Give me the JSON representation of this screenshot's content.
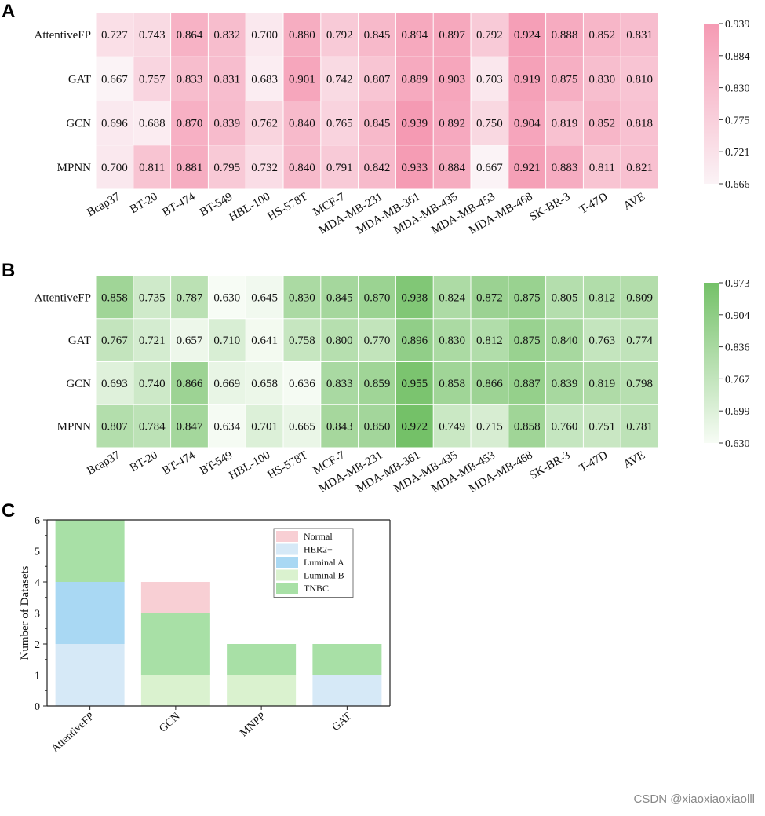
{
  "chart_data": [
    {
      "panel": "A",
      "type": "heatmap",
      "rows": [
        "AttentiveFP",
        "GAT",
        "GCN",
        "MPNN"
      ],
      "columns": [
        "Bcap37",
        "BT-20",
        "BT-474",
        "BT-549",
        "HBL-100",
        "HS-578T",
        "MCF-7",
        "MDA-MB-231",
        "MDA-MB-361",
        "MDA-MB-435",
        "MDA-MB-453",
        "MDA-MB-468",
        "SK-BR-3",
        "T-47D",
        "AVE"
      ],
      "values": [
        [
          "0.727",
          "0.743",
          "0.864",
          "0.832",
          "0.700",
          "0.880",
          "0.792",
          "0.845",
          "0.894",
          "0.897",
          "0.792",
          "0.924",
          "0.888",
          "0.852",
          "0.831"
        ],
        [
          "0.667",
          "0.757",
          "0.833",
          "0.831",
          "0.683",
          "0.901",
          "0.742",
          "0.807",
          "0.889",
          "0.903",
          "0.703",
          "0.919",
          "0.875",
          "0.830",
          "0.810"
        ],
        [
          "0.696",
          "0.688",
          "0.870",
          "0.839",
          "0.762",
          "0.840",
          "0.765",
          "0.845",
          "0.939",
          "0.892",
          "0.750",
          "0.904",
          "0.819",
          "0.852",
          "0.818"
        ],
        [
          "0.700",
          "0.811",
          "0.881",
          "0.795",
          "0.732",
          "0.840",
          "0.791",
          "0.842",
          "0.933",
          "0.884",
          "0.667",
          "0.921",
          "0.883",
          "0.811",
          "0.821"
        ]
      ],
      "colorbar_ticks": [
        "0.939",
        "0.884",
        "0.830",
        "0.775",
        "0.721",
        "0.666"
      ],
      "vmin": 0.666,
      "vmax": 0.939,
      "color_low": "#fbf3f6",
      "color_high": "#f59ab3"
    },
    {
      "panel": "B",
      "type": "heatmap",
      "rows": [
        "AttentiveFP",
        "GAT",
        "GCN",
        "MPNN"
      ],
      "columns": [
        "Bcap37",
        "BT-20",
        "BT-474",
        "BT-549",
        "HBL-100",
        "HS-578T",
        "MCF-7",
        "MDA-MB-231",
        "MDA-MB-361",
        "MDA-MB-435",
        "MDA-MB-453",
        "MDA-MB-468",
        "SK-BR-3",
        "T-47D",
        "AVE"
      ],
      "values": [
        [
          "0.858",
          "0.735",
          "0.787",
          "0.630",
          "0.645",
          "0.830",
          "0.845",
          "0.870",
          "0.938",
          "0.824",
          "0.872",
          "0.875",
          "0.805",
          "0.812",
          "0.809"
        ],
        [
          "0.767",
          "0.721",
          "0.657",
          "0.710",
          "0.641",
          "0.758",
          "0.800",
          "0.770",
          "0.896",
          "0.830",
          "0.812",
          "0.875",
          "0.840",
          "0.763",
          "0.774"
        ],
        [
          "0.693",
          "0.740",
          "0.866",
          "0.669",
          "0.658",
          "0.636",
          "0.833",
          "0.859",
          "0.955",
          "0.858",
          "0.866",
          "0.887",
          "0.839",
          "0.819",
          "0.798"
        ],
        [
          "0.807",
          "0.784",
          "0.847",
          "0.634",
          "0.701",
          "0.665",
          "0.843",
          "0.850",
          "0.972",
          "0.749",
          "0.715",
          "0.858",
          "0.760",
          "0.751",
          "0.781"
        ]
      ],
      "colorbar_ticks": [
        "0.973",
        "0.904",
        "0.836",
        "0.767",
        "0.699",
        "0.630"
      ],
      "vmin": 0.63,
      "vmax": 0.973,
      "color_low": "#f7fcf5",
      "color_high": "#74c168"
    },
    {
      "panel": "C",
      "type": "bar",
      "stacked": true,
      "categories": [
        "AttentiveFP",
        "GCN",
        "MNPP",
        "GAT"
      ],
      "series": [
        {
          "name": "HER2+",
          "color": "#d6e9f7",
          "values": [
            2,
            0,
            0,
            1
          ]
        },
        {
          "name": "Luminal A",
          "color": "#a9d8f3",
          "values": [
            2,
            0,
            0,
            0
          ]
        },
        {
          "name": "Luminal B",
          "color": "#daf2cf",
          "values": [
            0,
            1,
            1,
            0
          ]
        },
        {
          "name": "TNBC",
          "color": "#a8e0a6",
          "values": [
            2,
            2,
            1,
            1
          ]
        },
        {
          "name": "Normal",
          "color": "#f8cfd4",
          "values": [
            0,
            1,
            0,
            0
          ]
        }
      ],
      "legend_order": [
        "Normal",
        "HER2+",
        "Luminal A",
        "Luminal B",
        "TNBC"
      ],
      "ylabel": "Number of Datasets",
      "xlabel": "",
      "ylim": [
        0,
        6
      ],
      "yticks": [
        "0",
        "1",
        "2",
        "3",
        "4",
        "5",
        "6"
      ],
      "legend_position": "top-right"
    }
  ],
  "panel_labels": [
    "A",
    "B",
    "C"
  ],
  "watermark": "CSDN @xiaoxiaoxiaolll"
}
